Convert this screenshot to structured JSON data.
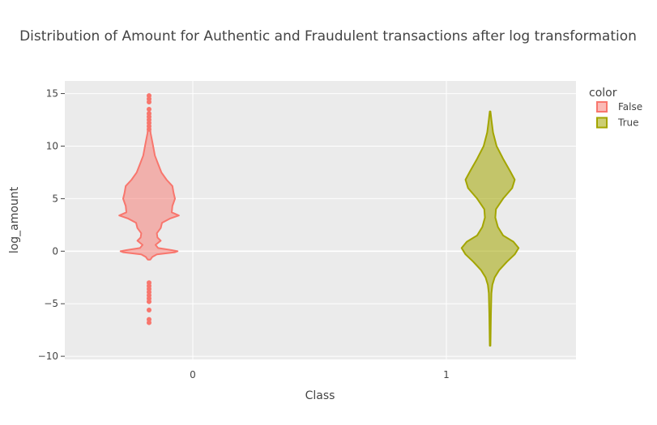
{
  "chart_data": {
    "type": "violin",
    "title": "Distribution of Amount for Authentic and Fraudulent transactions after log transformation",
    "xlabel": "Class",
    "ylabel": "log_amount",
    "x_ticks": [
      "0",
      "1"
    ],
    "y_ticks": [
      15,
      10,
      5,
      0,
      -5,
      -10
    ],
    "ylim": [
      -10.3,
      16.2
    ],
    "grid": true,
    "legend": {
      "title": "color",
      "placement": "top-right",
      "items": [
        {
          "label": "False",
          "color": "#f8766d"
        },
        {
          "label": "True",
          "color": "#a3a500"
        }
      ]
    },
    "series": [
      {
        "name": "False",
        "category": "0",
        "color": "#f8766d",
        "fill": "rgba(248,118,109,0.5)",
        "density": [
          [
            -0.8,
            0.02
          ],
          [
            -0.55,
            0.05
          ],
          [
            -0.3,
            0.12
          ],
          [
            -0.1,
            0.4
          ],
          [
            0.0,
            0.44
          ],
          [
            0.1,
            0.35
          ],
          [
            0.3,
            0.14
          ],
          [
            0.6,
            0.1
          ],
          [
            1.0,
            0.18
          ],
          [
            1.3,
            0.13
          ],
          [
            1.7,
            0.12
          ],
          [
            2.2,
            0.18
          ],
          [
            2.7,
            0.2
          ],
          [
            3.1,
            0.32
          ],
          [
            3.4,
            0.46
          ],
          [
            3.7,
            0.35
          ],
          [
            4.3,
            0.36
          ],
          [
            5.0,
            0.4
          ],
          [
            5.5,
            0.38
          ],
          [
            6.2,
            0.36
          ],
          [
            6.8,
            0.27
          ],
          [
            7.5,
            0.19
          ],
          [
            8.3,
            0.14
          ],
          [
            9.1,
            0.09
          ],
          [
            10.1,
            0.06
          ],
          [
            11.2,
            0.025
          ],
          [
            12.0,
            0.01
          ]
        ],
        "outliers": [
          14.8,
          14.5,
          14.2,
          13.5,
          13.1,
          12.8,
          12.5,
          12.2,
          11.9,
          11.6,
          -3.0,
          -3.3,
          -3.6,
          -3.9,
          -4.2,
          -4.5,
          -4.8,
          -5.6,
          -6.5,
          -6.8
        ]
      },
      {
        "name": "True",
        "category": "1",
        "color": "#a3a500",
        "fill": "rgba(163,165,0,0.55)",
        "density": [
          [
            -9.0,
            0.005
          ],
          [
            -8.0,
            0.008
          ],
          [
            -6.0,
            0.012
          ],
          [
            -4.0,
            0.02
          ],
          [
            -3.2,
            0.035
          ],
          [
            -2.5,
            0.07
          ],
          [
            -1.8,
            0.14
          ],
          [
            -1.0,
            0.26
          ],
          [
            -0.3,
            0.38
          ],
          [
            0.3,
            0.44
          ],
          [
            0.9,
            0.36
          ],
          [
            1.5,
            0.2
          ],
          [
            2.3,
            0.12
          ],
          [
            3.2,
            0.08
          ],
          [
            4.0,
            0.09
          ],
          [
            5.0,
            0.2
          ],
          [
            6.0,
            0.34
          ],
          [
            6.8,
            0.38
          ],
          [
            7.6,
            0.31
          ],
          [
            8.8,
            0.2
          ],
          [
            10.0,
            0.1
          ],
          [
            11.3,
            0.045
          ],
          [
            12.5,
            0.02
          ],
          [
            13.3,
            0.005
          ]
        ],
        "outliers": []
      }
    ]
  }
}
